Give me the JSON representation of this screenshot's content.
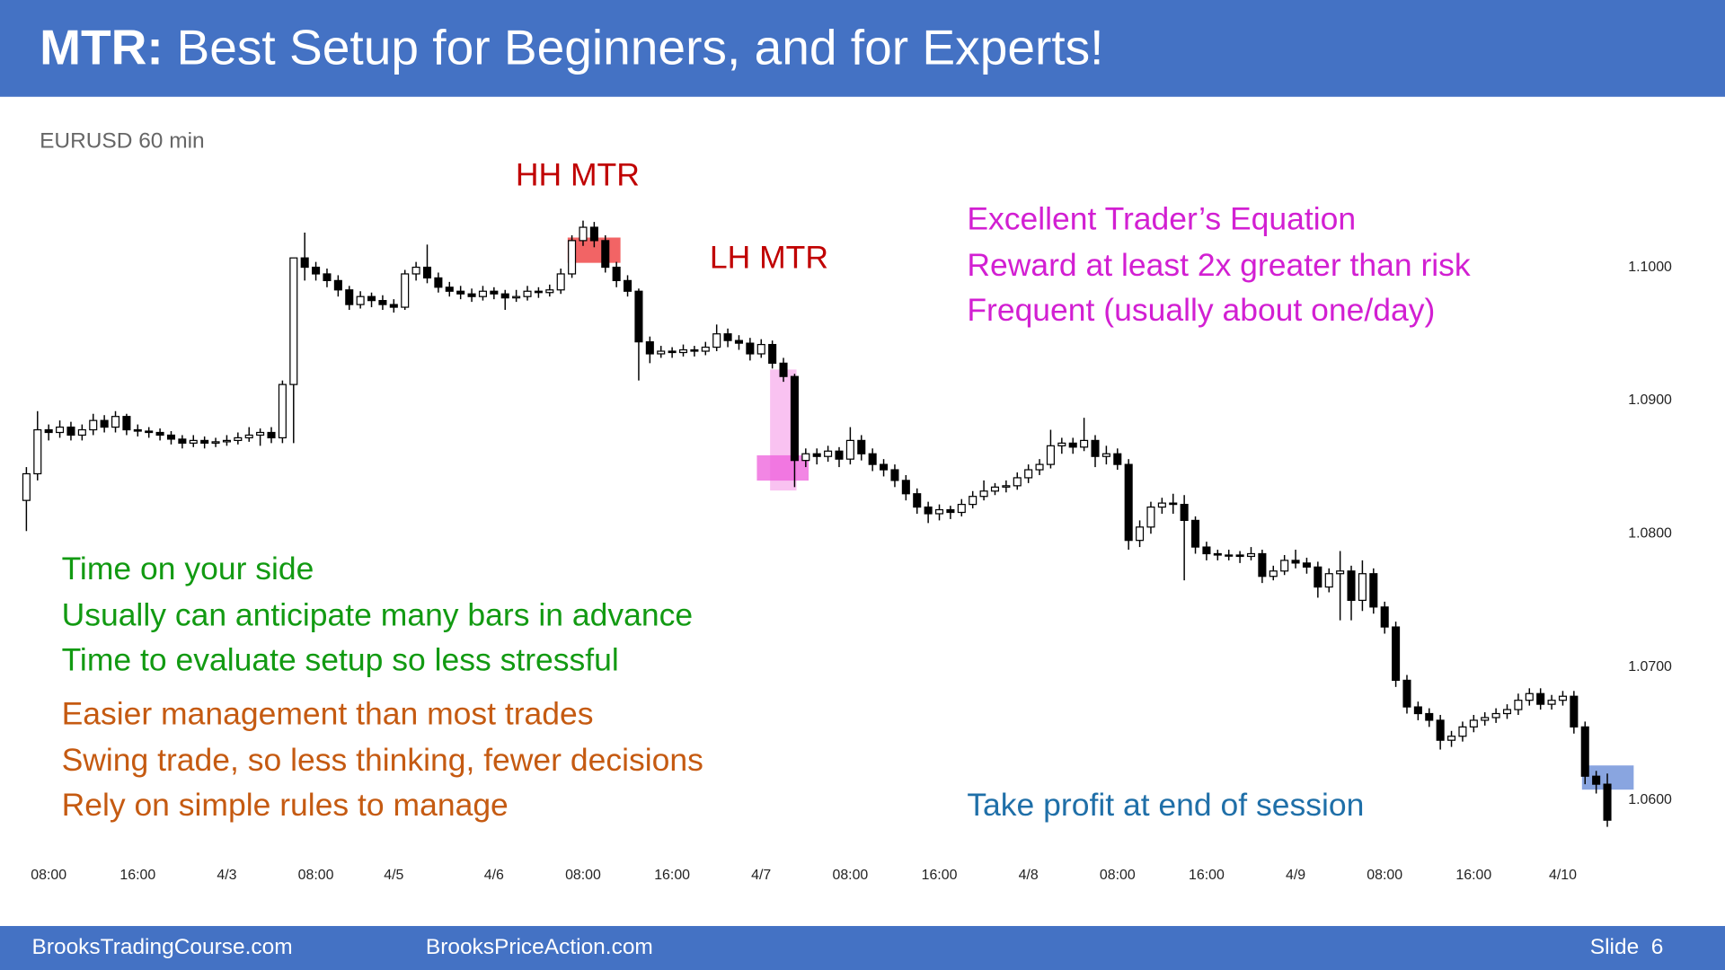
{
  "header": {
    "title_bold": "MTR:",
    "title": "Best Setup for Beginners, and for Experts!"
  },
  "chart_data": {
    "type": "candlestick",
    "subtitle": "EURUSD 60 min",
    "categories": [
      null,
      null,
      "08:00",
      null,
      null,
      null,
      null,
      null,
      null,
      null,
      "16:00",
      null,
      null,
      null,
      null,
      null,
      null,
      null,
      "4/3",
      null,
      null,
      null,
      null,
      null,
      null,
      null,
      "08:00",
      null,
      null,
      null,
      null,
      null,
      null,
      "4/5",
      null,
      null,
      null,
      null,
      null,
      null,
      null,
      null,
      "4/6",
      null,
      null,
      null,
      null,
      null,
      null,
      null,
      "08:00",
      null,
      null,
      null,
      null,
      null,
      null,
      null,
      "16:00",
      null,
      null,
      null,
      null,
      null,
      null,
      null,
      "4/7",
      null,
      null,
      null,
      null,
      null,
      null,
      null,
      "08:00",
      null,
      null,
      null,
      null,
      null,
      null,
      null,
      "16:00",
      null,
      null,
      null,
      null,
      null,
      null,
      null,
      "4/8",
      null,
      null,
      null,
      null,
      null,
      null,
      null,
      "08:00",
      null,
      null,
      null,
      null,
      null,
      null,
      null,
      "16:00",
      null,
      null,
      null,
      null,
      null,
      null,
      null,
      "4/9",
      null,
      null,
      null,
      null,
      null,
      null,
      null,
      "08:00",
      null,
      null,
      null,
      null,
      null,
      null,
      null,
      "16:00",
      null,
      null,
      null,
      null,
      null,
      null,
      null,
      "4/10",
      null,
      null,
      null,
      null
    ],
    "ohlc": [
      [
        1.0825,
        1.085,
        1.0802,
        1.0845
      ],
      [
        1.0845,
        1.0892,
        1.084,
        1.0878
      ],
      [
        1.0878,
        1.0882,
        1.087,
        1.0876
      ],
      [
        1.0876,
        1.0885,
        1.0872,
        1.088
      ],
      [
        1.088,
        1.0884,
        1.087,
        1.0874
      ],
      [
        1.0874,
        1.0882,
        1.087,
        1.0878
      ],
      [
        1.0878,
        1.089,
        1.0874,
        1.0885
      ],
      [
        1.0885,
        1.0889,
        1.0876,
        1.088
      ],
      [
        1.088,
        1.0892,
        1.0876,
        1.0888
      ],
      [
        1.0888,
        1.089,
        1.0874,
        1.0878
      ],
      [
        1.0878,
        1.0882,
        1.0873,
        1.0877
      ],
      [
        1.0877,
        1.088,
        1.0872,
        1.0876
      ],
      [
        1.0876,
        1.0879,
        1.087,
        1.0874
      ],
      [
        1.0874,
        1.0877,
        1.0867,
        1.0871
      ],
      [
        1.0871,
        1.0874,
        1.0864,
        1.0868
      ],
      [
        1.0868,
        1.0874,
        1.0865,
        1.087
      ],
      [
        1.087,
        1.0873,
        1.0864,
        1.0868
      ],
      [
        1.0868,
        1.0872,
        1.0865,
        1.0869
      ],
      [
        1.0869,
        1.0874,
        1.0866,
        1.087
      ],
      [
        1.087,
        1.0876,
        1.0867,
        1.0872
      ],
      [
        1.0872,
        1.088,
        1.0869,
        1.0874
      ],
      [
        1.0874,
        1.0879,
        1.0866,
        1.0876
      ],
      [
        1.0876,
        1.088,
        1.0868,
        1.0872
      ],
      [
        1.0872,
        1.0915,
        1.0868,
        1.0912
      ],
      [
        1.0912,
        1.1007,
        1.0868,
        1.1007
      ],
      [
        1.1007,
        1.1026,
        1.099,
        1.1
      ],
      [
        1.1,
        1.1004,
        1.099,
        1.0995
      ],
      [
        1.0995,
        1.0999,
        1.0985,
        1.099
      ],
      [
        1.099,
        1.0994,
        1.0978,
        1.0983
      ],
      [
        1.0983,
        1.0986,
        1.0968,
        1.0972
      ],
      [
        1.0972,
        1.0982,
        1.0969,
        1.0978
      ],
      [
        1.0978,
        1.0981,
        1.097,
        1.0975
      ],
      [
        1.0975,
        1.0979,
        1.0968,
        1.0972
      ],
      [
        1.0972,
        1.0976,
        1.0966,
        1.097
      ],
      [
        1.097,
        1.0998,
        1.0968,
        1.0995
      ],
      [
        1.0995,
        1.1004,
        1.099,
        1.1
      ],
      [
        1.1,
        1.1017,
        1.0988,
        1.0992
      ],
      [
        1.0992,
        1.0996,
        1.0981,
        1.0985
      ],
      [
        1.0985,
        1.0989,
        1.0978,
        1.0982
      ],
      [
        1.0982,
        1.0986,
        1.0976,
        1.098
      ],
      [
        1.098,
        1.0984,
        1.0974,
        1.0978
      ],
      [
        1.0978,
        1.0986,
        1.0975,
        1.0982
      ],
      [
        1.0982,
        1.0985,
        1.0976,
        1.098
      ],
      [
        1.098,
        1.0983,
        1.0968,
        1.0977
      ],
      [
        1.0977,
        1.0983,
        1.0974,
        1.0978
      ],
      [
        1.0978,
        1.0986,
        1.0975,
        1.0982
      ],
      [
        1.0982,
        1.0985,
        1.0977,
        1.0981
      ],
      [
        1.0981,
        1.0987,
        1.0978,
        1.0983
      ],
      [
        1.0983,
        1.0999,
        1.098,
        1.0995
      ],
      [
        1.0995,
        1.1024,
        1.0992,
        1.102
      ],
      [
        1.102,
        1.1035,
        1.1016,
        1.103
      ],
      [
        1.103,
        1.1034,
        1.1015,
        1.102
      ],
      [
        1.102,
        1.1024,
        1.0996,
        1.1
      ],
      [
        1.1,
        1.1004,
        1.0985,
        1.099
      ],
      [
        1.099,
        1.0994,
        1.0978,
        1.0982
      ],
      [
        1.0982,
        1.0984,
        1.0915,
        1.0944
      ],
      [
        1.0944,
        1.0948,
        1.0928,
        1.0935
      ],
      [
        1.0935,
        1.0941,
        1.0932,
        1.0937
      ],
      [
        1.0937,
        1.094,
        1.0932,
        1.0936
      ],
      [
        1.0936,
        1.0942,
        1.0933,
        1.0938
      ],
      [
        1.0938,
        1.0941,
        1.0933,
        1.0937
      ],
      [
        1.0937,
        1.0944,
        1.0934,
        1.094
      ],
      [
        1.094,
        1.0957,
        1.0937,
        1.095
      ],
      [
        1.095,
        1.0954,
        1.094,
        1.0945
      ],
      [
        1.0945,
        1.0949,
        1.0938,
        1.0943
      ],
      [
        1.0943,
        1.0947,
        1.093,
        1.0935
      ],
      [
        1.0935,
        1.0946,
        1.0932,
        1.0942
      ],
      [
        1.0942,
        1.0945,
        1.0924,
        1.0928
      ],
      [
        1.0928,
        1.0932,
        1.0914,
        1.0918
      ],
      [
        1.0918,
        1.092,
        1.0835,
        1.0855
      ],
      [
        1.0855,
        1.0864,
        1.085,
        1.086
      ],
      [
        1.086,
        1.0864,
        1.0852,
        1.0858
      ],
      [
        1.0858,
        1.0866,
        1.0854,
        1.0862
      ],
      [
        1.0862,
        1.0865,
        1.085,
        1.0856
      ],
      [
        1.0856,
        1.088,
        1.0852,
        1.087
      ],
      [
        1.087,
        1.0874,
        1.0855,
        1.086
      ],
      [
        1.086,
        1.0864,
        1.0847,
        1.0852
      ],
      [
        1.0852,
        1.0856,
        1.0843,
        1.0848
      ],
      [
        1.0848,
        1.0852,
        1.0835,
        1.084
      ],
      [
        1.084,
        1.0844,
        1.0825,
        1.083
      ],
      [
        1.083,
        1.0834,
        1.0815,
        1.082
      ],
      [
        1.082,
        1.0824,
        1.0808,
        1.0815
      ],
      [
        1.0815,
        1.0822,
        1.081,
        1.0818
      ],
      [
        1.0818,
        1.0821,
        1.0811,
        1.0816
      ],
      [
        1.0816,
        1.0826,
        1.0813,
        1.0822
      ],
      [
        1.0822,
        1.0832,
        1.0819,
        1.0828
      ],
      [
        1.0828,
        1.084,
        1.0825,
        1.0832
      ],
      [
        1.0832,
        1.0838,
        1.0829,
        1.0835
      ],
      [
        1.0835,
        1.084,
        1.0831,
        1.0836
      ],
      [
        1.0836,
        1.0846,
        1.0833,
        1.0842
      ],
      [
        1.0842,
        1.0852,
        1.0838,
        1.0848
      ],
      [
        1.0848,
        1.0856,
        1.0844,
        1.0852
      ],
      [
        1.0852,
        1.0878,
        1.0849,
        1.0866
      ],
      [
        1.0866,
        1.0872,
        1.086,
        1.0868
      ],
      [
        1.0868,
        1.0872,
        1.086,
        1.0865
      ],
      [
        1.0865,
        1.0887,
        1.0862,
        1.087
      ],
      [
        1.087,
        1.0874,
        1.085,
        1.0858
      ],
      [
        1.0858,
        1.0866,
        1.0852,
        1.086
      ],
      [
        1.086,
        1.0864,
        1.0848,
        1.0852
      ],
      [
        1.0852,
        1.0856,
        1.0788,
        1.0795
      ],
      [
        1.0795,
        1.081,
        1.079,
        1.0805
      ],
      [
        1.0805,
        1.0824,
        1.08,
        1.082
      ],
      [
        1.082,
        1.0827,
        1.0815,
        1.0823
      ],
      [
        1.0823,
        1.083,
        1.0815,
        1.0822
      ],
      [
        1.0822,
        1.0829,
        1.0765,
        1.081
      ],
      [
        1.081,
        1.0813,
        1.0785,
        1.079
      ],
      [
        1.079,
        1.0794,
        1.078,
        1.0785
      ],
      [
        1.0785,
        1.0788,
        1.078,
        1.0784
      ],
      [
        1.0784,
        1.0788,
        1.078,
        1.0784
      ],
      [
        1.0784,
        1.0787,
        1.0778,
        1.0783
      ],
      [
        1.0783,
        1.079,
        1.078,
        1.0785
      ],
      [
        1.0785,
        1.0788,
        1.0763,
        1.0768
      ],
      [
        1.0768,
        1.0776,
        1.0765,
        1.0772
      ],
      [
        1.0772,
        1.0784,
        1.0769,
        1.078
      ],
      [
        1.078,
        1.0788,
        1.0774,
        1.0778
      ],
      [
        1.0778,
        1.0782,
        1.077,
        1.0775
      ],
      [
        1.0775,
        1.0779,
        1.0752,
        1.076
      ],
      [
        1.076,
        1.0774,
        1.0756,
        1.077
      ],
      [
        1.077,
        1.0787,
        1.0735,
        1.0772
      ],
      [
        1.0772,
        1.0776,
        1.0735,
        1.075
      ],
      [
        1.075,
        1.078,
        1.0742,
        1.077
      ],
      [
        1.077,
        1.0774,
        1.074,
        1.0745
      ],
      [
        1.0745,
        1.0749,
        1.0725,
        1.073
      ],
      [
        1.073,
        1.0734,
        1.0685,
        1.069
      ],
      [
        1.069,
        1.0694,
        1.0665,
        1.067
      ],
      [
        1.067,
        1.0674,
        1.066,
        1.0665
      ],
      [
        1.0665,
        1.0669,
        1.0655,
        1.066
      ],
      [
        1.066,
        1.0664,
        1.0638,
        1.0645
      ],
      [
        1.0645,
        1.0652,
        1.064,
        1.0648
      ],
      [
        1.0648,
        1.0659,
        1.0644,
        1.0655
      ],
      [
        1.0655,
        1.0664,
        1.0651,
        1.066
      ],
      [
        1.066,
        1.0666,
        1.0656,
        1.0662
      ],
      [
        1.0662,
        1.0669,
        1.0658,
        1.0665
      ],
      [
        1.0665,
        1.0672,
        1.0661,
        1.0668
      ],
      [
        1.0668,
        1.068,
        1.0664,
        1.0675
      ],
      [
        1.0675,
        1.0684,
        1.0671,
        1.068
      ],
      [
        1.068,
        1.0684,
        1.0668,
        1.0672
      ],
      [
        1.0672,
        1.0679,
        1.0668,
        1.0675
      ],
      [
        1.0675,
        1.0682,
        1.0671,
        1.0678
      ],
      [
        1.0678,
        1.0682,
        1.065,
        1.0655
      ],
      [
        1.0655,
        1.0659,
        1.0612,
        1.0618
      ],
      [
        1.0618,
        1.0622,
        1.0605,
        1.0612
      ],
      [
        1.0612,
        1.062,
        1.058,
        1.0585
      ]
    ],
    "up_color": "#ffffff",
    "down_color": "#000000",
    "ylim": [
      1.0565,
      1.1052
    ],
    "yticks": [
      {
        "value": 1.06,
        "label": "1.0600"
      },
      {
        "value": 1.07,
        "label": "1.0700"
      },
      {
        "value": 1.08,
        "label": "1.0800"
      },
      {
        "value": 1.09,
        "label": "1.0900"
      },
      {
        "value": 1.1,
        "label": "1.1000"
      }
    ],
    "grid": false,
    "annotations": [
      {
        "text": "HH MTR",
        "color": "#c00000"
      },
      {
        "text": "LH MTR",
        "color": "#c00000"
      },
      {
        "text": "Excellent Trader’s Equation",
        "color": "#d21fd2"
      },
      {
        "text": "Reward at least 2x greater than risk",
        "color": "#d21fd2"
      },
      {
        "text": "Frequent (usually about one/day)",
        "color": "#d21fd2"
      },
      {
        "text": "Time on your side",
        "color": "#129a12"
      },
      {
        "text": "Usually can anticipate many bars in advance",
        "color": "#129a12"
      },
      {
        "text": "Time to evaluate setup so less stressful",
        "color": "#129a12"
      },
      {
        "text": "Easier management than most trades",
        "color": "#c55a11"
      },
      {
        "text": "Swing trade, so less thinking, fewer decisions",
        "color": "#c55a11"
      },
      {
        "text": "Rely on simple rules to manage",
        "color": "#c55a11"
      },
      {
        "text": "Take profit at end of session",
        "color": "#1f6fa8"
      }
    ]
  },
  "footer": {
    "left": "BrooksTradingCourse.com",
    "center": "BrooksPriceAction.com",
    "slide": "Slide  6"
  }
}
